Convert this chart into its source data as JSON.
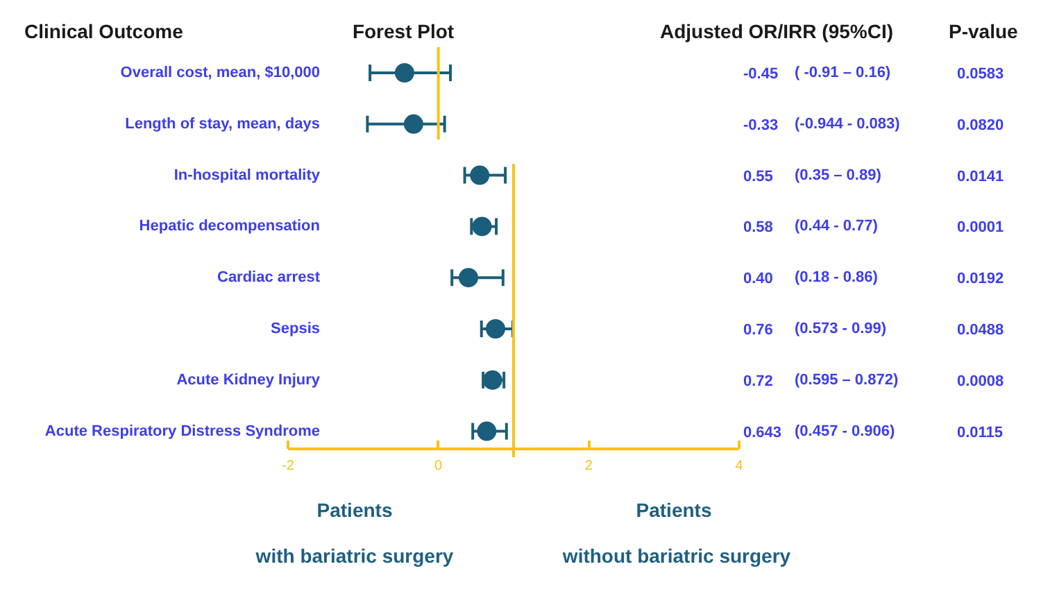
{
  "chart_data": {
    "type": "scatter",
    "categories": [
      "Overall cost, mean, $10,000",
      "Length of stay, mean, days",
      "In-hospital mortality",
      "Hepatic decompensation",
      "Cardiac arrest",
      "Sepsis",
      "Acute Kidney Injury",
      "Acute Respiratory Distress Syndrome"
    ],
    "values": [
      -0.45,
      -0.33,
      0.55,
      0.58,
      0.4,
      0.76,
      0.72,
      0.643
    ],
    "errors": [
      [
        -0.91,
        0.16
      ],
      [
        -0.944,
        0.083
      ],
      [
        0.35,
        0.89
      ],
      [
        0.44,
        0.77
      ],
      [
        0.18,
        0.86
      ],
      [
        0.573,
        0.99
      ],
      [
        0.595,
        0.872
      ],
      [
        0.457,
        0.906
      ]
    ],
    "value_labels": [
      "-0.45",
      "-0.33",
      "0.55",
      "0.58",
      "0.40",
      "0.76",
      "0.72",
      "0.643"
    ],
    "color": "#1b5e7b",
    "orientation": "horizontal",
    "marker": "circle",
    "xlim": [
      -2,
      4
    ],
    "xticks": [
      -2,
      0,
      2,
      4
    ],
    "tick_labels": "x",
    "ref_lines": [
      {
        "axis": "x",
        "value": 0,
        "color": "#f7c21a"
      },
      {
        "axis": "x",
        "value": 1,
        "color": "#f7c21a"
      }
    ],
    "annotations": [
      "Clinical Outcome",
      "Forest Plot",
      "Adjusted OR/IRR (95%CI)",
      "P-value",
      "( -0.91 – 0.16)",
      "(-0.944 - 0.083)",
      "(0.35 – 0.89)",
      "(0.44 - 0.77)",
      "(0.18 - 0.86)",
      "(0.573 - 0.99)",
      "(0.595 – 0.872)",
      "(0.457 - 0.906)",
      "0.0583",
      "0.0820",
      "0.0141",
      "0.0001",
      "0.0192",
      "0.0488",
      "0.0008",
      "0.0115",
      "Patients",
      "with bariatric surgery",
      "Patients",
      "without bariatric surgery"
    ]
  }
}
